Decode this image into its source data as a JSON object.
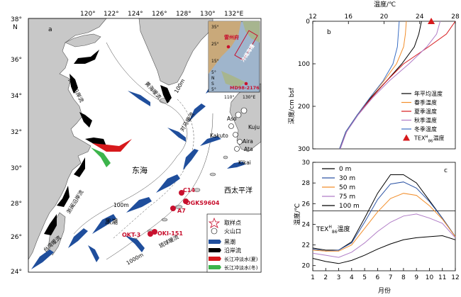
{
  "map": {
    "panel_label": "a",
    "lon_ticks": [
      "120°",
      "122°",
      "124°",
      "126°",
      "128°",
      "130°",
      "132°E"
    ],
    "lat_ticks": [
      "38°",
      "N",
      "36°",
      "34°",
      "32°",
      "30°",
      "28°",
      "26°",
      "24°"
    ],
    "sea_labels": [
      "东海",
      "西太平洋"
    ],
    "current_labels": [
      "黄海沿岸流",
      "黄海暖流",
      "对马暖流",
      "浙闽沿岸流",
      "台湾暖流",
      "黑潮",
      "琉球暖流"
    ],
    "isobath_labels": [
      "100m",
      "100m",
      "1000m"
    ],
    "volcano_labels": [
      "Aso",
      "Kuju",
      "Kakuto",
      "Aira",
      "Ata",
      "Kikai"
    ],
    "sites": [
      "C14",
      "DGKS9604",
      "A7",
      "OKT-3",
      "OKI-151"
    ],
    "inset": {
      "lat_ticks": [
        "35°",
        "25°",
        "15°",
        "5°",
        "N",
        "S",
        "5°"
      ],
      "lon_ticks": [
        "110°",
        "130°E"
      ],
      "labels": [
        "雷州府",
        "冲绳海槽",
        "MD98-2176"
      ]
    },
    "legend": [
      {
        "key": "star",
        "label": "取样点"
      },
      {
        "key": "circle",
        "label": "火山口"
      },
      {
        "key": "kuroshio",
        "label": "黑潮"
      },
      {
        "key": "coastal",
        "label": "沿岸流"
      },
      {
        "key": "summer",
        "label": "长江冲淡水(夏)"
      },
      {
        "key": "winter",
        "label": "长江冲淡水(冬)"
      }
    ],
    "colors": {
      "kuroshio": "#1f4e9c",
      "coastal": "#000000",
      "summer": "#d7191c",
      "winter": "#3cb44b",
      "site": "#c8102e",
      "land": "#c8c8c8"
    }
  },
  "chart_data": [
    {
      "type": "line",
      "panel_label": "b",
      "xlabel": "温度/℃",
      "ylabel": "深度/cm bsf",
      "xticks": [
        12,
        16,
        20,
        24,
        28
      ],
      "yticks": [
        0,
        100,
        200,
        300
      ],
      "xlim": [
        12,
        28
      ],
      "ylim": [
        0,
        300
      ],
      "series": [
        {
          "name": "年平均温度",
          "color": "#000000",
          "x": [
            24.2,
            23.9,
            23.4,
            22.0,
            20.3,
            18.5,
            17.0,
            15.7,
            15.0
          ],
          "y": [
            0,
            30,
            60,
            100,
            140,
            180,
            220,
            260,
            300
          ]
        },
        {
          "name": "春季温度",
          "color": "#f28e2b",
          "x": [
            22.5,
            22.4,
            22.2,
            21.4,
            20.0,
            18.4,
            17.0,
            15.7,
            15.0
          ],
          "y": [
            0,
            30,
            60,
            100,
            140,
            180,
            220,
            260,
            300
          ]
        },
        {
          "name": "夏季温度",
          "color": "#d7191c",
          "x": [
            28.0,
            27.0,
            25.0,
            22.2,
            20.3,
            18.6,
            17.0,
            15.8,
            15.0
          ],
          "y": [
            0,
            30,
            60,
            100,
            140,
            180,
            220,
            260,
            300
          ]
        },
        {
          "name": "秋季温度",
          "color": "#b07cc6",
          "x": [
            26.3,
            25.9,
            24.8,
            22.8,
            20.6,
            18.7,
            17.1,
            15.8,
            15.1
          ],
          "y": [
            0,
            30,
            60,
            100,
            140,
            180,
            220,
            260,
            300
          ]
        },
        {
          "name": "冬季温度",
          "color": "#3b6fc4",
          "x": [
            21.7,
            21.6,
            21.5,
            21.0,
            19.9,
            18.4,
            17.0,
            15.7,
            15.0
          ],
          "y": [
            0,
            30,
            60,
            100,
            140,
            180,
            220,
            260,
            300
          ]
        }
      ],
      "marker": {
        "name": "TEX^H_86温度",
        "name_main": "TEX",
        "name_sup": "H",
        "name_sub": "86",
        "name_tail": "温度",
        "x": 25.3,
        "y": 0,
        "color": "#d7191c"
      }
    },
    {
      "type": "line",
      "panel_label": "c",
      "xlabel": "月份",
      "ylabel": "温度/℃",
      "xticks": [
        1,
        2,
        3,
        4,
        5,
        6,
        7,
        8,
        9,
        10,
        11,
        12
      ],
      "yticks": [
        20,
        22,
        24,
        26,
        28,
        30
      ],
      "xlim": [
        1,
        12
      ],
      "ylim": [
        19.5,
        30
      ],
      "series": [
        {
          "name": "0 m",
          "color": "#000000",
          "x": [
            1,
            2,
            3,
            4,
            5,
            6,
            7,
            8,
            9,
            10,
            11,
            12
          ],
          "y": [
            21.7,
            21.5,
            21.5,
            22.3,
            24.6,
            27.0,
            28.8,
            28.8,
            28.0,
            26.3,
            24.6,
            22.8
          ]
        },
        {
          "name": "30 m",
          "color": "#2e55a5",
          "x": [
            1,
            2,
            3,
            4,
            5,
            6,
            7,
            8,
            9,
            10,
            11,
            12
          ],
          "y": [
            21.6,
            21.4,
            21.5,
            22.2,
            24.2,
            26.4,
            27.9,
            28.1,
            27.5,
            26.2,
            24.6,
            22.8
          ]
        },
        {
          "name": "50 m",
          "color": "#f28e2b",
          "x": [
            1,
            2,
            3,
            4,
            5,
            6,
            7,
            8,
            9,
            10,
            11,
            12
          ],
          "y": [
            21.5,
            21.4,
            21.4,
            22.0,
            23.6,
            25.2,
            26.5,
            27.0,
            26.8,
            25.8,
            24.5,
            22.8
          ]
        },
        {
          "name": "75 m",
          "color": "#b07cc6",
          "x": [
            1,
            2,
            3,
            4,
            5,
            6,
            7,
            8,
            9,
            10,
            11,
            12
          ],
          "y": [
            21.2,
            21.0,
            20.8,
            21.3,
            22.2,
            23.3,
            24.2,
            24.8,
            25.0,
            24.6,
            24.1,
            22.7
          ]
        },
        {
          "name": "100 m",
          "color": "#000000",
          "x": [
            1,
            2,
            3,
            4,
            5,
            6,
            7,
            8,
            9,
            10,
            11,
            12
          ],
          "y": [
            20.7,
            20.4,
            20.2,
            20.5,
            21.0,
            21.6,
            22.1,
            22.5,
            22.7,
            22.8,
            22.9,
            22.5
          ]
        }
      ],
      "reference_line": {
        "y": 25.3,
        "label_main": "TEX",
        "label_sup": "H",
        "label_sub": "86",
        "label_tail": "温度"
      }
    }
  ]
}
